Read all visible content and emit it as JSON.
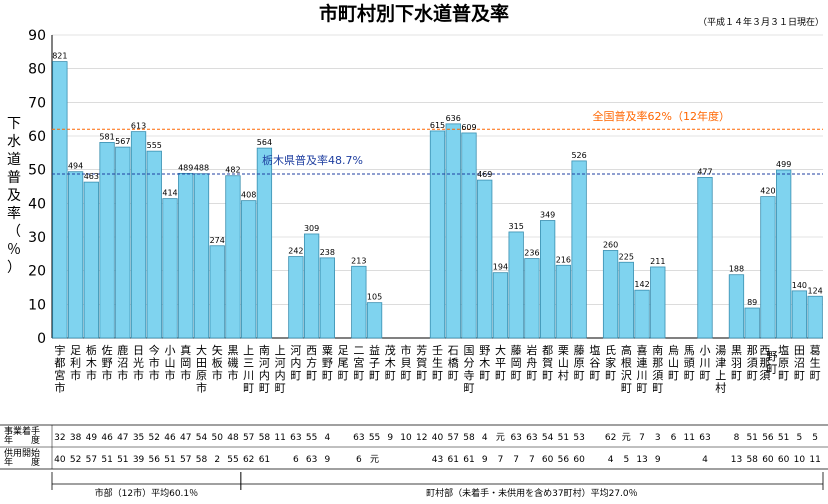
{
  "chart_data": {
    "type": "bar",
    "title": "市町村別下水道普及率",
    "subtitle": "（平成１４年３月３１日現在）",
    "ylabel": "下水道普及率（％）",
    "ylim": [
      0,
      90
    ],
    "yticks": [
      0,
      10,
      20,
      30,
      40,
      50,
      60,
      70,
      80,
      90
    ],
    "bar_color": "#7fd3ef",
    "categories": [
      "宇都宮市",
      "足利市",
      "栃木市",
      "佐野市",
      "鹿沼市",
      "日光市",
      "今市市",
      "小山市",
      "真岡市",
      "大田原市",
      "矢板市",
      "黒磯市",
      "上三川町",
      "南河内町",
      "上河内町",
      "河内町",
      "西方町",
      "粟野町",
      "足尾町",
      "二宮町",
      "益子町",
      "茂木町",
      "市貝町",
      "芳賀町",
      "壬生町",
      "石橋町",
      "国分寺町",
      "野木町",
      "大平町",
      "藤岡町",
      "岩舟町",
      "都賀町",
      "栗山村",
      "藤原町",
      "塩谷町",
      "氏家町",
      "高根沢町",
      "喜連川町",
      "南那須町",
      "烏山町",
      "馬頭町",
      "小川町",
      "湯津上村",
      "黒羽町",
      "那須町",
      "西那須野町",
      "塩原町",
      "田沼町",
      "葛生町"
    ],
    "values": [
      82.1,
      49.4,
      46.3,
      58.1,
      56.7,
      61.3,
      55.5,
      41.4,
      48.9,
      48.8,
      27.4,
      48.2,
      40.8,
      56.4,
      0,
      24.2,
      30.9,
      23.8,
      0,
      21.3,
      10.5,
      0,
      0,
      0,
      61.5,
      63.6,
      60.9,
      46.9,
      19.4,
      31.5,
      23.6,
      34.9,
      21.6,
      52.6,
      0,
      26.0,
      22.5,
      14.2,
      21.1,
      0,
      0,
      47.7,
      0,
      18.8,
      8.9,
      42.0,
      49.9,
      14.0,
      12.4
    ],
    "value_labels": [
      "821",
      "494",
      "463",
      "581",
      "567",
      "613",
      "555",
      "414",
      "489",
      "488",
      "274",
      "482",
      "408",
      "564",
      "",
      "242",
      "309",
      "238",
      "",
      "213",
      "105",
      "",
      "",
      "",
      "615",
      "636",
      "609",
      "469",
      "194",
      "315",
      "236",
      "349",
      "216",
      "526",
      "",
      "260",
      "225",
      "142",
      "211",
      "",
      "",
      "477",
      "",
      "188",
      "89",
      "420",
      "499",
      "140",
      "124"
    ],
    "reference_lines": [
      {
        "name": "全国普及率62%（12年度）",
        "value": 62,
        "color": "#ff6600"
      },
      {
        "name": "栃木県普及率48.7%",
        "value": 48.7,
        "color": "#1f3fa0"
      }
    ],
    "table": {
      "row_labels": [
        [
          "事業着手",
          "年　　度"
        ],
        [
          "供用開始",
          "年　　度"
        ]
      ],
      "start_year": [
        "32",
        "38",
        "49",
        "46",
        "47",
        "35",
        "52",
        "46",
        "47",
        "54",
        "50",
        "48",
        "57",
        "58",
        "11",
        "63",
        "55",
        "4",
        "",
        "63",
        "55",
        "9",
        "10",
        "12",
        "40",
        "57",
        "58",
        "4",
        "元",
        "63",
        "63",
        "54",
        "51",
        "53",
        "",
        "62",
        "元",
        "7",
        "3",
        "6",
        "11",
        "63",
        "",
        "8",
        "51",
        "56",
        "51",
        "5",
        "5"
      ],
      "service_year": [
        "40",
        "52",
        "57",
        "51",
        "51",
        "39",
        "56",
        "51",
        "57",
        "58",
        "2",
        "55",
        "62",
        "61",
        "",
        "6",
        "63",
        "9",
        "",
        "6",
        "元",
        "",
        "",
        "",
        "43",
        "61",
        "61",
        "9",
        "7",
        "7",
        "7",
        "60",
        "56",
        "60",
        "",
        "4",
        "5",
        "13",
        "9",
        "",
        "",
        "4",
        "",
        "13",
        "58",
        "60",
        "60",
        "10",
        "11"
      ]
    },
    "groups": [
      {
        "label": "市部（12市）平均60.1％"
      },
      {
        "label": "町村部（未着手・未供用を含め37町村）平均27.0％"
      }
    ]
  }
}
